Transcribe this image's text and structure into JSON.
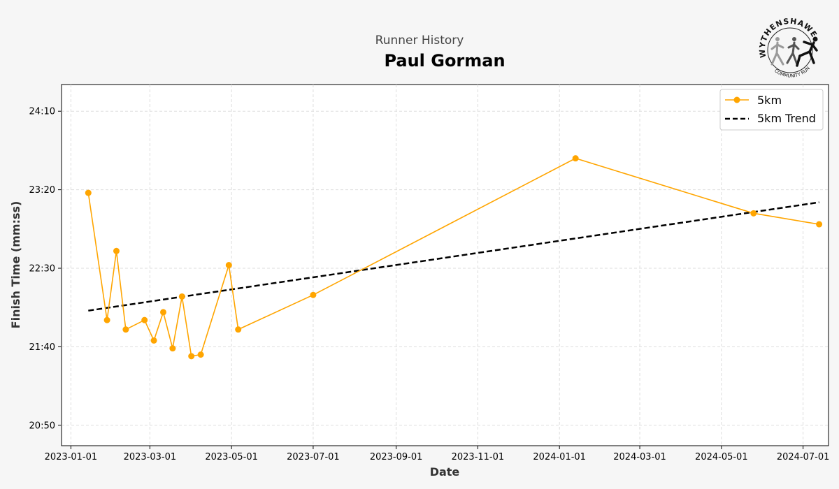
{
  "header": {
    "subtitle": "Runner History",
    "runner_name": "Paul Gorman"
  },
  "logo": {
    "name": "WYTHENSHAWE",
    "tagline": "COMMUNITY RUN"
  },
  "colors": {
    "series": "#FFA500",
    "trend": "#000000",
    "background": "#f6f6f6",
    "plot_background": "#ffffff"
  },
  "chart_data": {
    "type": "line",
    "title": "Paul Gorman",
    "xlabel": "Date",
    "ylabel": "Finish Time (mm:ss)",
    "xlim": [
      "2022-12-25",
      "2024-07-20"
    ],
    "ylim": [
      "20:37",
      "24:27"
    ],
    "x_ticks": [
      "2023-01-01",
      "2023-03-01",
      "2023-05-01",
      "2023-07-01",
      "2023-09-01",
      "2023-11-01",
      "2024-01-01",
      "2024-03-01",
      "2024-05-01",
      "2024-07-01"
    ],
    "y_ticks": [
      "20:50",
      "21:40",
      "22:30",
      "23:20",
      "24:10"
    ],
    "grid": true,
    "legend": "top-right",
    "series": [
      {
        "name": "5km",
        "style": "line-marker",
        "points": [
          {
            "x": "2023-01-14",
            "y": "23:18"
          },
          {
            "x": "2023-01-28",
            "y": "21:57"
          },
          {
            "x": "2023-02-04",
            "y": "22:41"
          },
          {
            "x": "2023-02-11",
            "y": "21:51"
          },
          {
            "x": "2023-02-25",
            "y": "21:57"
          },
          {
            "x": "2023-03-04",
            "y": "21:44"
          },
          {
            "x": "2023-03-11",
            "y": "22:02"
          },
          {
            "x": "2023-03-18",
            "y": "21:39"
          },
          {
            "x": "2023-03-25",
            "y": "22:12"
          },
          {
            "x": "2023-04-01",
            "y": "21:34"
          },
          {
            "x": "2023-04-08",
            "y": "21:35"
          },
          {
            "x": "2023-04-29",
            "y": "22:32"
          },
          {
            "x": "2023-05-06",
            "y": "21:51"
          },
          {
            "x": "2023-07-01",
            "y": "22:13"
          },
          {
            "x": "2024-01-13",
            "y": "23:40"
          },
          {
            "x": "2024-05-25",
            "y": "23:05"
          },
          {
            "x": "2024-07-13",
            "y": "22:58"
          }
        ]
      },
      {
        "name": "5km Trend",
        "style": "dashed",
        "points": [
          {
            "x": "2023-01-14",
            "y": "22:03"
          },
          {
            "x": "2024-07-13",
            "y": "23:12"
          }
        ]
      }
    ]
  }
}
